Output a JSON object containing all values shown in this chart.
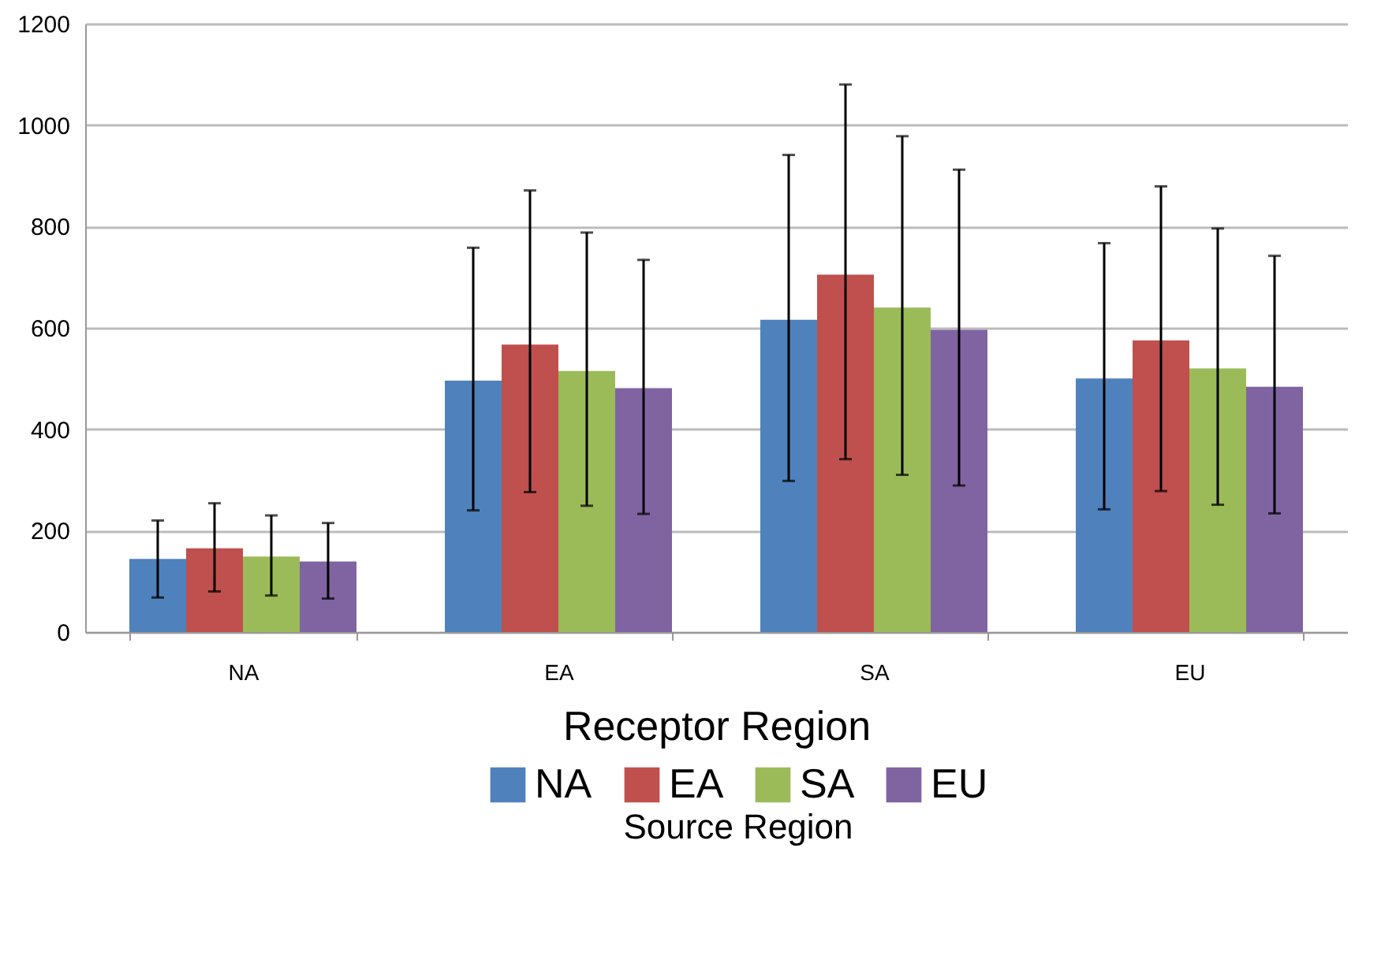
{
  "chart_data": {
    "type": "bar",
    "xlabel": "Receptor Region",
    "legend_title": "Source Region",
    "categories": [
      "NA",
      "EA",
      "SA",
      "EU"
    ],
    "series": [
      {
        "name": "NA",
        "color": "#4f81bd",
        "values": [
          144,
          496,
          616,
          500
        ],
        "errors": [
          [
            68,
            220
          ],
          [
            240,
            758
          ],
          [
            298,
            941
          ],
          [
            242,
            767
          ]
        ]
      },
      {
        "name": "EA",
        "color": "#c0504d",
        "values": [
          165,
          567,
          705,
          575
        ],
        "errors": [
          [
            80,
            254
          ],
          [
            276,
            871
          ],
          [
            341,
            1080
          ],
          [
            278,
            879
          ]
        ]
      },
      {
        "name": "SA",
        "color": "#9bbb59",
        "values": [
          149,
          515,
          640,
          520
        ],
        "errors": [
          [
            72,
            230
          ],
          [
            249,
            788
          ],
          [
            310,
            978
          ],
          [
            251,
            796
          ]
        ]
      },
      {
        "name": "EU",
        "color": "#8064a2",
        "values": [
          139,
          481,
          596,
          484
        ],
        "errors": [
          [
            66,
            215
          ],
          [
            233,
            734
          ],
          [
            289,
            912
          ],
          [
            234,
            742
          ]
        ]
      }
    ],
    "ylim": [
      0,
      1200
    ],
    "yticks": [
      0,
      200,
      400,
      600,
      800,
      1000,
      1200
    ],
    "grid": "y",
    "legend": "bottom"
  }
}
